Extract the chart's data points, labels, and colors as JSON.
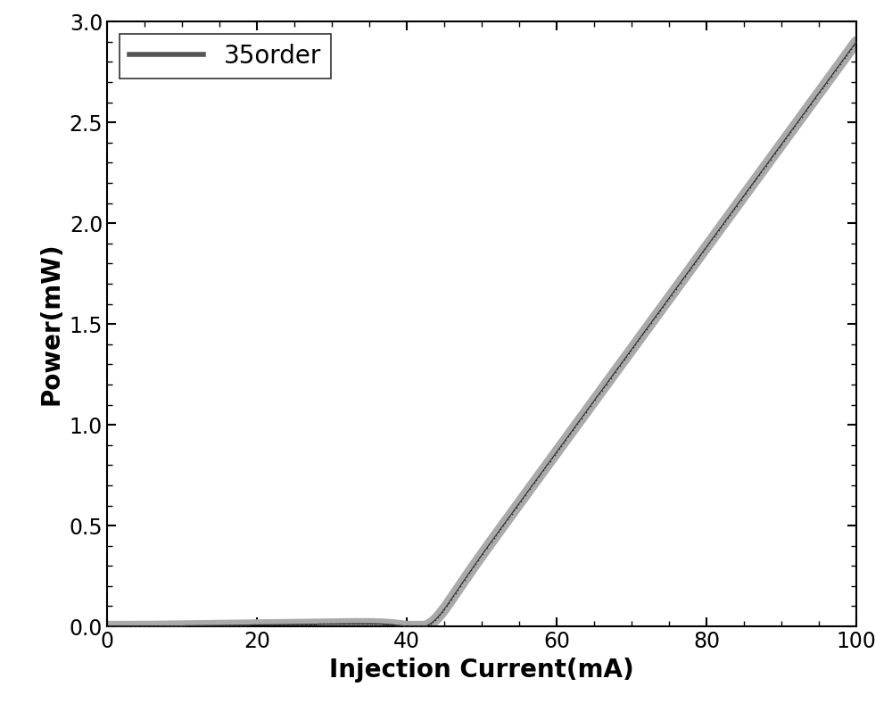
{
  "title": "",
  "xlabel": "Injection Current(mA)",
  "ylabel": "Power(mW)",
  "xlim": [
    0,
    100
  ],
  "ylim": [
    0,
    3.0
  ],
  "xticks": [
    0,
    20,
    40,
    60,
    80,
    100
  ],
  "yticks": [
    0.0,
    0.5,
    1.0,
    1.5,
    2.0,
    2.5,
    3.0
  ],
  "legend_label": "35order",
  "line_color": "#444444",
  "line_width": 6.0,
  "dot_color": "#888888",
  "dot_size": 1.5,
  "threshold_current": 43.0,
  "max_current": 100.0,
  "max_power": 2.9,
  "background_color": "#ffffff",
  "xlabel_fontsize": 20,
  "ylabel_fontsize": 20,
  "tick_fontsize": 17,
  "legend_fontsize": 20,
  "figwidth": 10.0,
  "figheight": 8.07
}
